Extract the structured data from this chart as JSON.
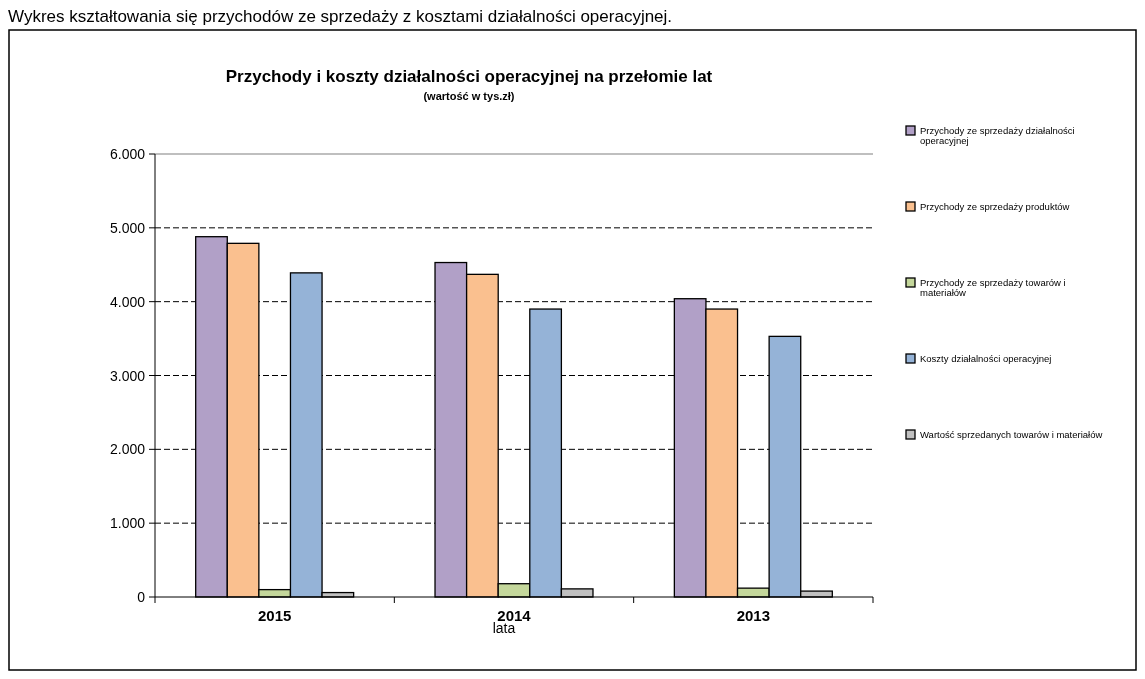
{
  "chart_data": {
    "type": "bar",
    "title": "Przychody i koszty działalności operacyjnej na przełomie lat",
    "subtitle": "(wartość w tys.zł)",
    "xlabel": "lata",
    "annotations": [
      "Wykres kształtowania się przychodów ze sprzedaży z kosztami działalności operacyjnej."
    ],
    "categories": [
      "2015",
      "2014",
      "2013"
    ],
    "series": [
      {
        "name": "Przychody ze sprzedaży działalności operacyjnej",
        "color": "#b1a0c7",
        "values": [
          4880,
          4530,
          4040
        ]
      },
      {
        "name": "Przychody ze sprzedaży produktów",
        "color": "#fac08f",
        "values": [
          4790,
          4370,
          3900
        ]
      },
      {
        "name": "Przychody ze sprzedaży towarów i materiałów",
        "color": "#c4d79b",
        "values": [
          100,
          180,
          120
        ]
      },
      {
        "name": "Koszty działalności operacyjnej",
        "color": "#95b3d7",
        "values": [
          4390,
          3900,
          3530
        ]
      },
      {
        "name": "Wartość sprzedanych towarów i materiałów",
        "color": "#c0c0c0",
        "values": [
          60,
          110,
          80
        ]
      }
    ],
    "ylim": [
      0,
      6000
    ],
    "yticks": [
      {
        "value": 0,
        "label": "0"
      },
      {
        "value": 1000,
        "label": "1.000"
      },
      {
        "value": 2000,
        "label": "2.000"
      },
      {
        "value": 3000,
        "label": "3.000"
      },
      {
        "value": 4000,
        "label": "4.000"
      },
      {
        "value": 5000,
        "label": "5.000"
      },
      {
        "value": 6000,
        "label": "6.000"
      }
    ],
    "grid": "y",
    "legend": "right"
  }
}
